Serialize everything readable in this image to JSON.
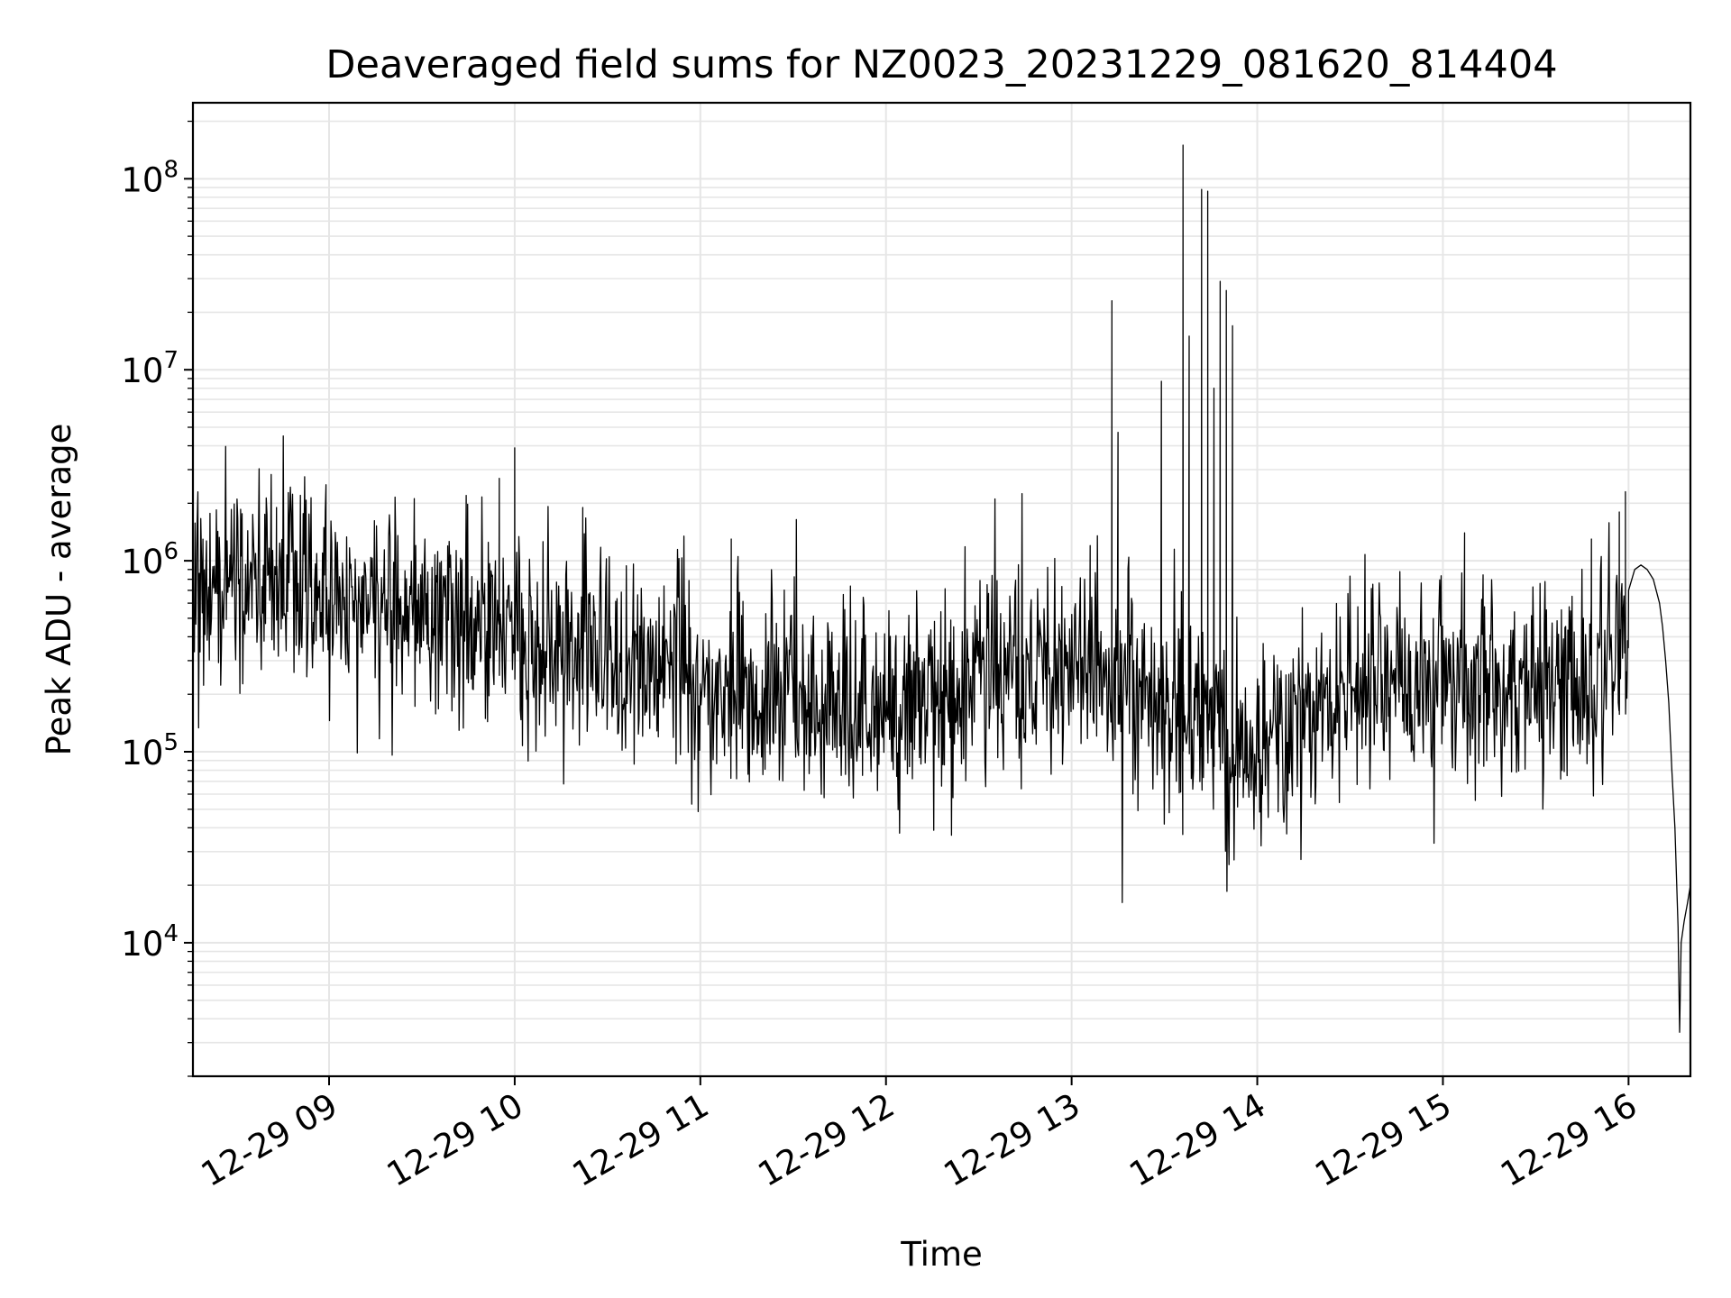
{
  "chart_data": {
    "type": "line",
    "title": "Deaveraged field sums for NZ0023_20231229_081620_814404",
    "xlabel": "Time",
    "ylabel": "Peak ADU - average",
    "x_scale": "time",
    "y_scale": "log",
    "xlim": [
      "2023-12-29 08:16",
      "2023-12-29 16:20"
    ],
    "ylim": [
      2000,
      250000000
    ],
    "x_ticks": [
      {
        "value": "2023-12-29 09:00",
        "label": "12-29 09"
      },
      {
        "value": "2023-12-29 10:00",
        "label": "12-29 10"
      },
      {
        "value": "2023-12-29 11:00",
        "label": "12-29 11"
      },
      {
        "value": "2023-12-29 12:00",
        "label": "12-29 12"
      },
      {
        "value": "2023-12-29 13:00",
        "label": "12-29 13"
      },
      {
        "value": "2023-12-29 14:00",
        "label": "12-29 14"
      },
      {
        "value": "2023-12-29 15:00",
        "label": "12-29 15"
      },
      {
        "value": "2023-12-29 16:00",
        "label": "12-29 16"
      }
    ],
    "y_ticks": [
      {
        "value": 10000,
        "base": "10",
        "exp": "4"
      },
      {
        "value": 100000,
        "base": "10",
        "exp": "5"
      },
      {
        "value": 1000000,
        "base": "10",
        "exp": "6"
      },
      {
        "value": 10000000,
        "base": "10",
        "exp": "7"
      },
      {
        "value": 100000000,
        "base": "10",
        "exp": "8"
      }
    ],
    "grid": true,
    "line_color": "#000000",
    "grid_color": "#e6e6e6",
    "series": [
      {
        "trend": [
          [
            "2023-12-29 08:16",
            700000
          ],
          [
            "2023-12-29 08:40",
            800000
          ],
          [
            "2023-12-29 09:00",
            650000
          ],
          [
            "2023-12-29 09:30",
            500000
          ],
          [
            "2023-12-29 10:00",
            380000
          ],
          [
            "2023-12-29 10:30",
            330000
          ],
          [
            "2023-12-29 11:00",
            230000
          ],
          [
            "2023-12-29 11:30",
            200000
          ],
          [
            "2023-12-29 12:00",
            160000
          ],
          [
            "2023-12-29 12:30",
            220000
          ],
          [
            "2023-12-29 13:00",
            280000
          ],
          [
            "2023-12-29 13:40",
            150000
          ],
          [
            "2023-12-29 14:00",
            100000
          ],
          [
            "2023-12-29 14:30",
            220000
          ],
          [
            "2023-12-29 15:00",
            230000
          ],
          [
            "2023-12-29 15:30",
            220000
          ],
          [
            "2023-12-29 15:58",
            250000
          ]
        ],
        "spikes": [
          [
            "2023-12-29 08:43",
            1900000
          ],
          [
            "2023-12-29 08:59",
            2500000
          ],
          [
            "2023-12-29 09:55",
            2700000
          ],
          [
            "2023-12-29 10:00",
            3900000
          ],
          [
            "2023-12-29 10:22",
            1900000
          ],
          [
            "2023-12-29 11:10",
            1300000
          ],
          [
            "2023-12-29 13:06",
            1200000
          ],
          [
            "2023-12-29 13:13",
            23000000
          ],
          [
            "2023-12-29 13:15",
            4700000
          ],
          [
            "2023-12-29 13:29",
            8700000
          ],
          [
            "2023-12-29 13:36",
            150000000
          ],
          [
            "2023-12-29 13:38",
            15000000
          ],
          [
            "2023-12-29 13:42",
            88000000
          ],
          [
            "2023-12-29 13:44",
            86000000
          ],
          [
            "2023-12-29 13:46",
            8000000
          ],
          [
            "2023-12-29 13:48",
            29000000
          ],
          [
            "2023-12-29 13:50",
            26000000
          ],
          [
            "2023-12-29 13:52",
            17000000
          ],
          [
            "2023-12-29 15:07",
            1400000
          ],
          [
            "2023-12-29 15:48",
            1300000
          ],
          [
            "2023-12-29 15:57",
            1800000
          ],
          [
            "2023-12-29 15:59",
            2300000
          ]
        ],
        "tail": [
          [
            "2023-12-29 16:00",
            700000
          ],
          [
            "2023-12-29 16:02",
            900000
          ],
          [
            "2023-12-29 16:04",
            950000
          ],
          [
            "2023-12-29 16:06",
            900000
          ],
          [
            "2023-12-29 16:08",
            800000
          ],
          [
            "2023-12-29 16:10",
            600000
          ],
          [
            "2023-12-29 16:11",
            450000
          ],
          [
            "2023-12-29 16:12",
            300000
          ],
          [
            "2023-12-29 16:13",
            180000
          ],
          [
            "2023-12-29 16:14",
            80000
          ],
          [
            "2023-12-29 16:15",
            40000
          ],
          [
            "2023-12-29 16:16",
            12000
          ],
          [
            "2023-12-29 16:16:30",
            3400
          ],
          [
            "2023-12-29 16:17",
            10000
          ],
          [
            "2023-12-29 16:18",
            13000
          ],
          [
            "2023-12-29 16:19",
            16000
          ],
          [
            "2023-12-29 16:20",
            20000
          ]
        ]
      }
    ]
  }
}
